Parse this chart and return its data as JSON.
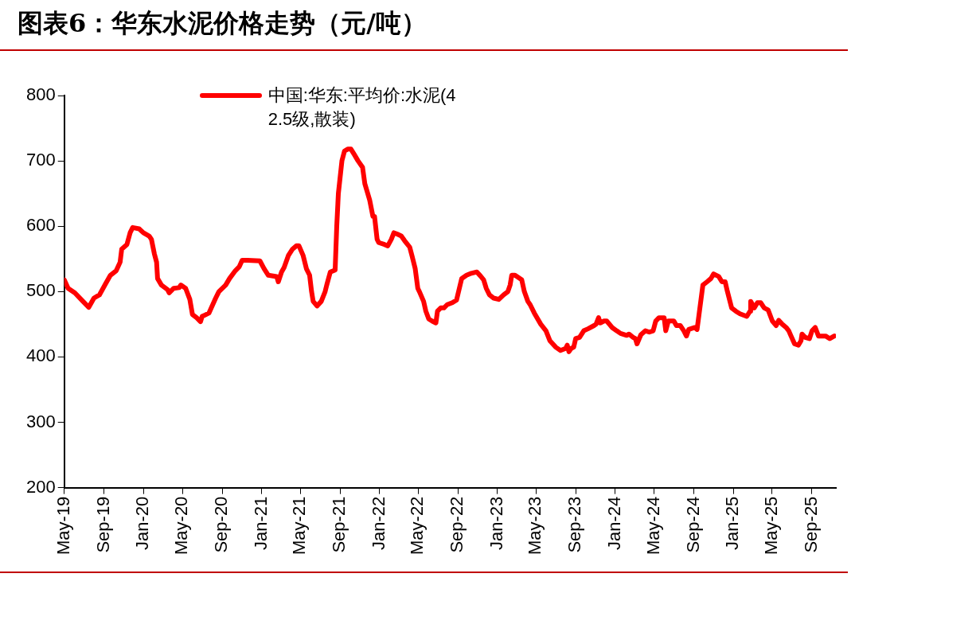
{
  "chart_data": {
    "type": "line",
    "title": "图表6：华东水泥价格走势（元/吨）",
    "legend": "top",
    "grid": false,
    "marker": "none",
    "line_style": "solid",
    "xlim": [
      "2019-05-01",
      "2025-11-15"
    ],
    "xticks": [
      {
        "value": "2019-05-01",
        "label": "May-19"
      },
      {
        "value": "2019-09-01",
        "label": "Sep-19"
      },
      {
        "value": "2020-01-01",
        "label": "Jan-20"
      },
      {
        "value": "2020-05-01",
        "label": "May-20"
      },
      {
        "value": "2020-09-01",
        "label": "Sep-20"
      },
      {
        "value": "2021-01-01",
        "label": "Jan-21"
      },
      {
        "value": "2021-05-01",
        "label": "May-21"
      },
      {
        "value": "2021-09-01",
        "label": "Sep-21"
      },
      {
        "value": "2022-01-01",
        "label": "Jan-22"
      },
      {
        "value": "2022-05-01",
        "label": "May-22"
      },
      {
        "value": "2022-09-01",
        "label": "Sep-22"
      },
      {
        "value": "2023-01-01",
        "label": "Jan-23"
      },
      {
        "value": "2023-05-01",
        "label": "May-23"
      },
      {
        "value": "2023-09-01",
        "label": "Sep-23"
      },
      {
        "value": "2024-01-01",
        "label": "Jan-24"
      },
      {
        "value": "2024-05-01",
        "label": "May-24"
      },
      {
        "value": "2024-09-01",
        "label": "Sep-24"
      },
      {
        "value": "2025-01-01",
        "label": "Jan-25"
      },
      {
        "value": "2025-05-01",
        "label": "May-25"
      },
      {
        "value": "2025-09-01",
        "label": "Sep-25"
      }
    ],
    "ylim": [
      200,
      800
    ],
    "yticks": [
      200,
      300,
      400,
      500,
      600,
      700,
      800
    ],
    "series": [
      {
        "name": "中国:华东:平均价:水泥(42.5级,散装)",
        "color": "#ff0000",
        "x": [
          "2019-05-01",
          "2019-05-13",
          "2019-06-03",
          "2019-06-28",
          "2019-07-16",
          "2019-08-01",
          "2019-08-18",
          "2019-09-06",
          "2019-09-21",
          "2019-10-09",
          "2019-10-21",
          "2019-10-26",
          "2019-11-11",
          "2019-11-21",
          "2019-11-29",
          "2019-12-19",
          "2020-01-01",
          "2020-01-19",
          "2020-01-26",
          "2020-02-04",
          "2020-02-11",
          "2020-02-14",
          "2020-02-26",
          "2020-03-16",
          "2020-03-21",
          "2020-04-04",
          "2020-04-21",
          "2020-04-26",
          "2020-05-11",
          "2020-05-24",
          "2020-06-01",
          "2020-06-14",
          "2020-06-26",
          "2020-07-01",
          "2020-07-22",
          "2020-08-12",
          "2020-08-22",
          "2020-09-12",
          "2020-09-24",
          "2020-10-12",
          "2020-10-24",
          "2020-11-02",
          "2020-11-19",
          "2020-12-27",
          "2021-01-09",
          "2021-01-22",
          "2021-02-17",
          "2021-02-22",
          "2021-03-04",
          "2021-03-12",
          "2021-03-25",
          "2021-04-07",
          "2021-04-19",
          "2021-04-27",
          "2021-05-10",
          "2021-05-20",
          "2021-05-30",
          "2021-06-05",
          "2021-06-10",
          "2021-06-22",
          "2021-07-05",
          "2021-07-17",
          "2021-07-22",
          "2021-08-02",
          "2021-08-17",
          "2021-08-22",
          "2021-08-27",
          "2021-09-07",
          "2021-09-15",
          "2021-09-25",
          "2021-10-05",
          "2021-10-15",
          "2021-10-27",
          "2021-11-10",
          "2021-11-17",
          "2021-12-02",
          "2021-12-12",
          "2021-12-17",
          "2021-12-25",
          "2021-12-30",
          "2022-01-17",
          "2022-01-27",
          "2022-02-07",
          "2022-02-15",
          "2022-02-25",
          "2022-03-10",
          "2022-03-20",
          "2022-04-05",
          "2022-04-12",
          "2022-04-22",
          "2022-04-30",
          "2022-05-05",
          "2022-05-18",
          "2022-05-25",
          "2022-06-03",
          "2022-06-13",
          "2022-06-25",
          "2022-06-30",
          "2022-07-10",
          "2022-07-20",
          "2022-07-30",
          "2022-08-15",
          "2022-08-28",
          "2022-09-13",
          "2022-09-28",
          "2022-10-13",
          "2022-10-30",
          "2022-11-10",
          "2022-11-20",
          "2022-11-28",
          "2022-12-08",
          "2022-12-21",
          "2023-01-06",
          "2023-01-21",
          "2023-02-03",
          "2023-02-10",
          "2023-02-15",
          "2023-02-25",
          "2023-03-18",
          "2023-03-26",
          "2023-04-06",
          "2023-04-13",
          "2023-04-26",
          "2023-05-16",
          "2023-06-01",
          "2023-06-13",
          "2023-07-01",
          "2023-07-16",
          "2023-08-01",
          "2023-08-06",
          "2023-08-11",
          "2023-08-18",
          "2023-08-26",
          "2023-09-01",
          "2023-09-13",
          "2023-09-26",
          "2023-10-09",
          "2023-10-28",
          "2023-11-03",
          "2023-11-11",
          "2023-11-16",
          "2023-11-28",
          "2023-12-06",
          "2023-12-23",
          "2024-01-06",
          "2024-01-18",
          "2024-02-06",
          "2024-02-13",
          "2024-02-26",
          "2024-03-04",
          "2024-03-09",
          "2024-03-21",
          "2024-04-04",
          "2024-04-16",
          "2024-04-28",
          "2024-05-06",
          "2024-05-16",
          "2024-06-01",
          "2024-06-06",
          "2024-06-14",
          "2024-07-01",
          "2024-07-09",
          "2024-07-21",
          "2024-08-01",
          "2024-08-09",
          "2024-08-16",
          "2024-09-04",
          "2024-09-11",
          "2024-09-29",
          "2024-10-12",
          "2024-10-24",
          "2024-11-01",
          "2024-11-17",
          "2024-11-27",
          "2024-12-07",
          "2024-12-14",
          "2024-12-27",
          "2025-01-09",
          "2025-01-22",
          "2025-02-12",
          "2025-02-22",
          "2025-02-24",
          "2025-03-02",
          "2025-03-07",
          "2025-03-17",
          "2025-03-27",
          "2025-04-07",
          "2025-04-19",
          "2025-05-02",
          "2025-05-14",
          "2025-05-22",
          "2025-06-02",
          "2025-06-14",
          "2025-06-22",
          "2025-06-29",
          "2025-07-10",
          "2025-07-22",
          "2025-07-30",
          "2025-08-02",
          "2025-08-12",
          "2025-08-25",
          "2025-09-02",
          "2025-09-12",
          "2025-09-22",
          "2025-10-02",
          "2025-10-14",
          "2025-10-27",
          "2025-11-10"
        ],
        "values": [
          518,
          505,
          498,
          485,
          476,
          490,
          495,
          512,
          525,
          532,
          545,
          565,
          572,
          590,
          598,
          596,
          590,
          585,
          580,
          558,
          545,
          520,
          510,
          503,
          498,
          505,
          506,
          510,
          505,
          488,
          465,
          460,
          454,
          462,
          467,
          490,
          500,
          510,
          520,
          532,
          538,
          548,
          548,
          547,
          535,
          525,
          523,
          515,
          530,
          537,
          555,
          565,
          570,
          570,
          555,
          535,
          525,
          500,
          485,
          478,
          485,
          500,
          510,
          530,
          533,
          600,
          650,
          700,
          715,
          718,
          718,
          710,
          700,
          690,
          665,
          640,
          615,
          615,
          580,
          575,
          572,
          570,
          580,
          590,
          588,
          585,
          578,
          568,
          555,
          535,
          505,
          500,
          485,
          470,
          458,
          455,
          452,
          470,
          475,
          475,
          480,
          483,
          487,
          520,
          525,
          528,
          530,
          524,
          518,
          505,
          495,
          490,
          488,
          495,
          500,
          510,
          525,
          525,
          518,
          500,
          485,
          480,
          467,
          450,
          440,
          425,
          415,
          410,
          413,
          418,
          408,
          413,
          415,
          428,
          430,
          440,
          443,
          448,
          450,
          460,
          452,
          455,
          455,
          445,
          440,
          436,
          433,
          435,
          430,
          428,
          420,
          434,
          440,
          438,
          440,
          455,
          460,
          460,
          440,
          455,
          455,
          448,
          448,
          440,
          432,
          442,
          445,
          442,
          510,
          515,
          520,
          527,
          523,
          515,
          515,
          500,
          475,
          470,
          466,
          462,
          470,
          485,
          480,
          475,
          483,
          483,
          475,
          472,
          455,
          448,
          456,
          450,
          445,
          440,
          432,
          420,
          418,
          425,
          435,
          430,
          428,
          440,
          445,
          432,
          432,
          432,
          428,
          432
        ]
      }
    ]
  }
}
